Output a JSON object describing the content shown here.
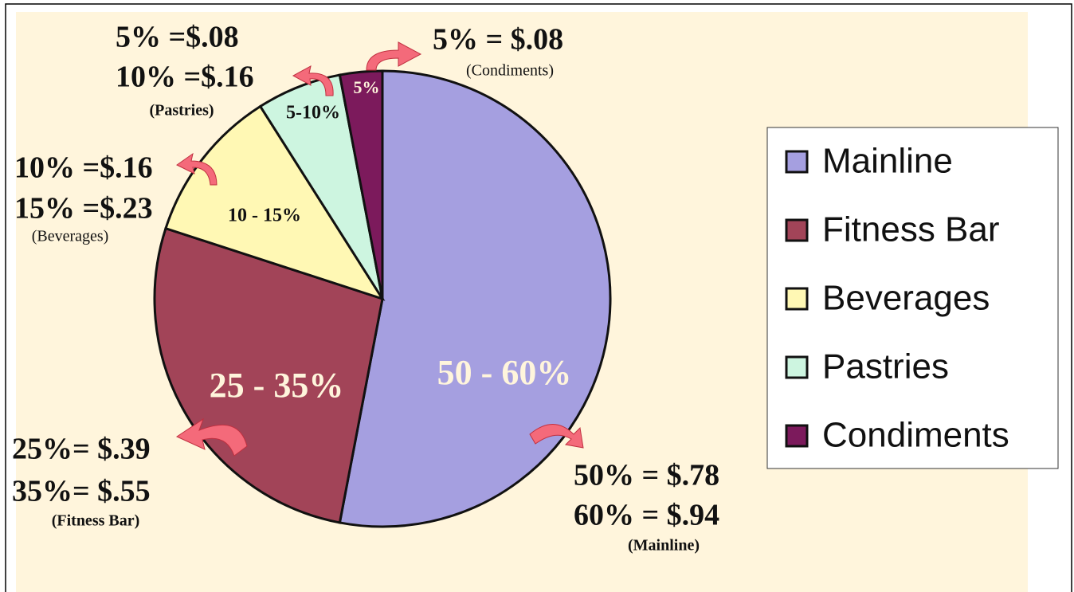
{
  "chart_data": {
    "type": "pie",
    "categories": [
      "Mainline",
      "Fitness Bar",
      "Beverages",
      "Pastries",
      "Condiments"
    ],
    "values": [
      53,
      27,
      11,
      6,
      3
    ],
    "colors": [
      "#a59fe0",
      "#a24458",
      "#fff8b4",
      "#cdf5e0",
      "#7c1a5c"
    ],
    "legend": "right",
    "annotations": [
      {
        "slice_label": "50 - 60%",
        "lines": [
          "50% = $.78",
          "60% = $.94"
        ],
        "note": "(Mainline)"
      },
      {
        "slice_label": "25 - 35%",
        "lines": [
          "25%= $.39",
          "35%= $.55"
        ],
        "note": "(Fitness Bar)"
      },
      {
        "slice_label": "10 - 15%",
        "lines": [
          "10% =$.16",
          "15% =$.23"
        ],
        "note": "(Beverages)"
      },
      {
        "slice_label": "5-10%",
        "lines": [
          "5% =$.08",
          "10% =$.16"
        ],
        "note": "(Pastries)"
      },
      {
        "slice_label": "5%",
        "lines": [
          "5% = $.08"
        ],
        "note": "(Condiments)"
      }
    ]
  }
}
